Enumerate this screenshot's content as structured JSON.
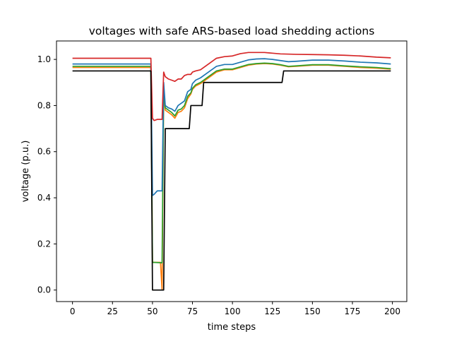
{
  "chart_data": {
    "type": "line",
    "title": "voltages with safe ARS-based load shedding actions",
    "xlabel": "time steps",
    "ylabel": "voltage (p.u.)",
    "xlim": [
      -10,
      209
    ],
    "ylim": [
      -0.05,
      1.08
    ],
    "xticks": [
      0,
      25,
      50,
      75,
      100,
      125,
      150,
      175,
      200
    ],
    "yticks": [
      0.0,
      0.2,
      0.4,
      0.6,
      0.8,
      1.0
    ],
    "xtick_labels": [
      "0",
      "25",
      "50",
      "75",
      "100",
      "125",
      "150",
      "175",
      "200"
    ],
    "ytick_labels": [
      "0.0",
      "0.2",
      "0.4",
      "0.6",
      "0.8",
      "1.0"
    ],
    "grid": false,
    "series": [
      {
        "color": "#ff7f0e",
        "points": [
          [
            0,
            0.965
          ],
          [
            49,
            0.965
          ],
          [
            50,
            0.12
          ],
          [
            51,
            0.12
          ],
          [
            55,
            0.12
          ],
          [
            56,
            0.0
          ],
          [
            57,
            0.85
          ],
          [
            58,
            0.78
          ],
          [
            60,
            0.77
          ],
          [
            62,
            0.76
          ],
          [
            64,
            0.745
          ],
          [
            66,
            0.77
          ],
          [
            68,
            0.775
          ],
          [
            70,
            0.79
          ],
          [
            72,
            0.83
          ],
          [
            74,
            0.85
          ],
          [
            75,
            0.87
          ],
          [
            77,
            0.885
          ],
          [
            80,
            0.895
          ],
          [
            85,
            0.92
          ],
          [
            90,
            0.945
          ],
          [
            95,
            0.955
          ],
          [
            100,
            0.955
          ],
          [
            105,
            0.965
          ],
          [
            110,
            0.975
          ],
          [
            115,
            0.98
          ],
          [
            120,
            0.982
          ],
          [
            125,
            0.98
          ],
          [
            130,
            0.975
          ],
          [
            135,
            0.968
          ],
          [
            140,
            0.97
          ],
          [
            150,
            0.975
          ],
          [
            160,
            0.975
          ],
          [
            170,
            0.97
          ],
          [
            180,
            0.965
          ],
          [
            190,
            0.962
          ],
          [
            199,
            0.958
          ]
        ]
      },
      {
        "color": "#2ca02c",
        "points": [
          [
            0,
            0.97
          ],
          [
            49,
            0.97
          ],
          [
            50,
            0.12
          ],
          [
            51,
            0.12
          ],
          [
            56,
            0.118
          ],
          [
            57,
            0.87
          ],
          [
            58,
            0.79
          ],
          [
            60,
            0.78
          ],
          [
            62,
            0.77
          ],
          [
            64,
            0.755
          ],
          [
            66,
            0.78
          ],
          [
            68,
            0.785
          ],
          [
            70,
            0.8
          ],
          [
            72,
            0.84
          ],
          [
            74,
            0.855
          ],
          [
            75,
            0.875
          ],
          [
            77,
            0.89
          ],
          [
            80,
            0.9
          ],
          [
            85,
            0.925
          ],
          [
            90,
            0.95
          ],
          [
            95,
            0.958
          ],
          [
            100,
            0.958
          ],
          [
            105,
            0.968
          ],
          [
            110,
            0.978
          ],
          [
            115,
            0.982
          ],
          [
            120,
            0.984
          ],
          [
            125,
            0.982
          ],
          [
            130,
            0.977
          ],
          [
            135,
            0.97
          ],
          [
            140,
            0.972
          ],
          [
            150,
            0.977
          ],
          [
            160,
            0.977
          ],
          [
            170,
            0.972
          ],
          [
            180,
            0.968
          ],
          [
            190,
            0.965
          ],
          [
            199,
            0.96
          ]
        ]
      },
      {
        "color": "#1f77b4",
        "points": [
          [
            0,
            0.98
          ],
          [
            49,
            0.98
          ],
          [
            50,
            0.41
          ],
          [
            51,
            0.415
          ],
          [
            53,
            0.43
          ],
          [
            56,
            0.43
          ],
          [
            57,
            0.9
          ],
          [
            58,
            0.8
          ],
          [
            60,
            0.79
          ],
          [
            62,
            0.785
          ],
          [
            64,
            0.775
          ],
          [
            66,
            0.8
          ],
          [
            68,
            0.81
          ],
          [
            70,
            0.82
          ],
          [
            72,
            0.86
          ],
          [
            74,
            0.87
          ],
          [
            75,
            0.895
          ],
          [
            77,
            0.91
          ],
          [
            80,
            0.92
          ],
          [
            85,
            0.945
          ],
          [
            90,
            0.97
          ],
          [
            95,
            0.978
          ],
          [
            100,
            0.978
          ],
          [
            105,
            0.988
          ],
          [
            110,
            0.998
          ],
          [
            115,
            1.002
          ],
          [
            120,
            1.003
          ],
          [
            125,
            1.0
          ],
          [
            130,
            0.995
          ],
          [
            135,
            0.99
          ],
          [
            140,
            0.992
          ],
          [
            150,
            0.997
          ],
          [
            160,
            0.997
          ],
          [
            170,
            0.993
          ],
          [
            180,
            0.988
          ],
          [
            190,
            0.985
          ],
          [
            199,
            0.98
          ]
        ]
      },
      {
        "color": "#d62728",
        "points": [
          [
            0,
            1.005
          ],
          [
            49,
            1.005
          ],
          [
            50,
            0.745
          ],
          [
            51,
            0.735
          ],
          [
            53,
            0.74
          ],
          [
            56,
            0.74
          ],
          [
            57,
            0.945
          ],
          [
            58,
            0.925
          ],
          [
            60,
            0.915
          ],
          [
            62,
            0.91
          ],
          [
            64,
            0.905
          ],
          [
            66,
            0.915
          ],
          [
            68,
            0.915
          ],
          [
            70,
            0.93
          ],
          [
            72,
            0.935
          ],
          [
            74,
            0.935
          ],
          [
            75,
            0.945
          ],
          [
            77,
            0.95
          ],
          [
            80,
            0.955
          ],
          [
            85,
            0.98
          ],
          [
            90,
            1.005
          ],
          [
            95,
            1.012
          ],
          [
            100,
            1.015
          ],
          [
            105,
            1.025
          ],
          [
            110,
            1.03
          ],
          [
            115,
            1.03
          ],
          [
            120,
            1.03
          ],
          [
            125,
            1.027
          ],
          [
            130,
            1.024
          ],
          [
            140,
            1.022
          ],
          [
            150,
            1.021
          ],
          [
            160,
            1.02
          ],
          [
            170,
            1.018
          ],
          [
            180,
            1.015
          ],
          [
            190,
            1.01
          ],
          [
            199,
            1.007
          ]
        ]
      },
      {
        "color": "#000000",
        "points": [
          [
            0,
            0.95
          ],
          [
            49,
            0.95
          ],
          [
            50,
            0.0
          ],
          [
            51,
            0.0
          ],
          [
            57,
            0.0
          ],
          [
            58,
            0.7
          ],
          [
            73,
            0.7
          ],
          [
            74,
            0.8
          ],
          [
            81,
            0.8
          ],
          [
            82,
            0.9
          ],
          [
            131,
            0.9
          ],
          [
            132,
            0.95
          ],
          [
            199,
            0.95
          ]
        ]
      }
    ]
  }
}
